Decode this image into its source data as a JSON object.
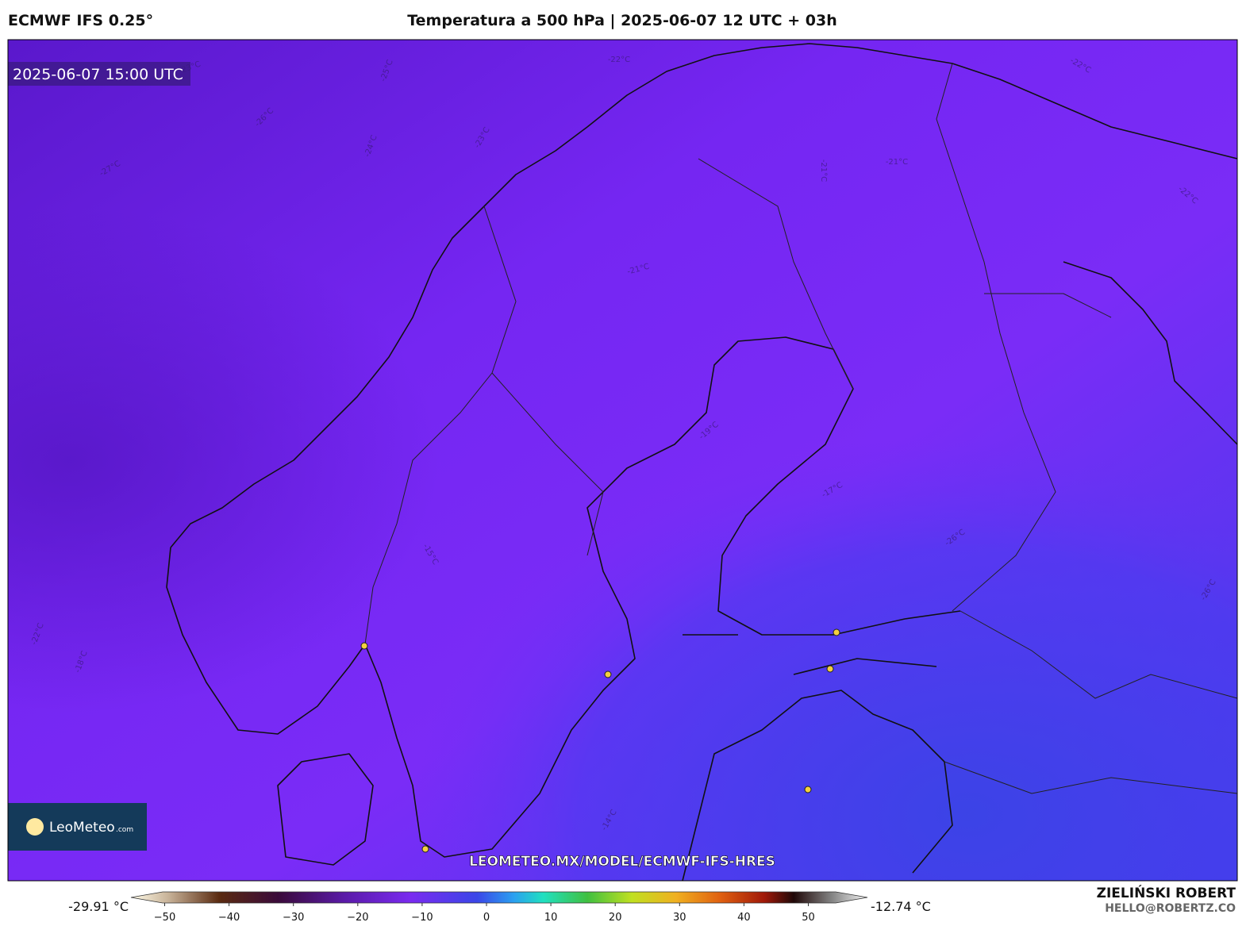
{
  "header": {
    "model": "ECMWF IFS 0.25°",
    "title": "Temperatura a 500 hPa | 2025-06-07 12 UTC + 03h"
  },
  "map": {
    "valid_time": "2025-06-07 15:00 UTC",
    "watermark": "LEOMETEO.MX/MODEL/ECMWF-IFS-HRES",
    "logo": {
      "name": "LeoMeteo",
      "suffix": ".com"
    },
    "contour_labels": [
      "-23°C",
      "-25°C",
      "-26°C",
      "-27°C",
      "-24°C",
      "-23°C",
      "-22°C",
      "-21°C",
      "-21°C",
      "-21°C",
      "-22°C",
      "-22°C",
      "-19°C",
      "-17°C",
      "-26°C",
      "-26°C",
      "-22°C",
      "-18°C",
      "-15°C",
      "-14°C"
    ]
  },
  "colorbar": {
    "min_label": "-29.91 °C",
    "max_label": "-12.74 °C",
    "ticks": [
      {
        "value": -50,
        "label": "−50"
      },
      {
        "value": -40,
        "label": "−40"
      },
      {
        "value": -30,
        "label": "−30"
      },
      {
        "value": -20,
        "label": "−20"
      },
      {
        "value": -10,
        "label": "−10"
      },
      0,
      10,
      20,
      30,
      40,
      50
    ]
  },
  "footer": {
    "author": "ZIELIŃSKI ROBERT",
    "contact": "HELLO@ROBERTZ.CO"
  }
}
